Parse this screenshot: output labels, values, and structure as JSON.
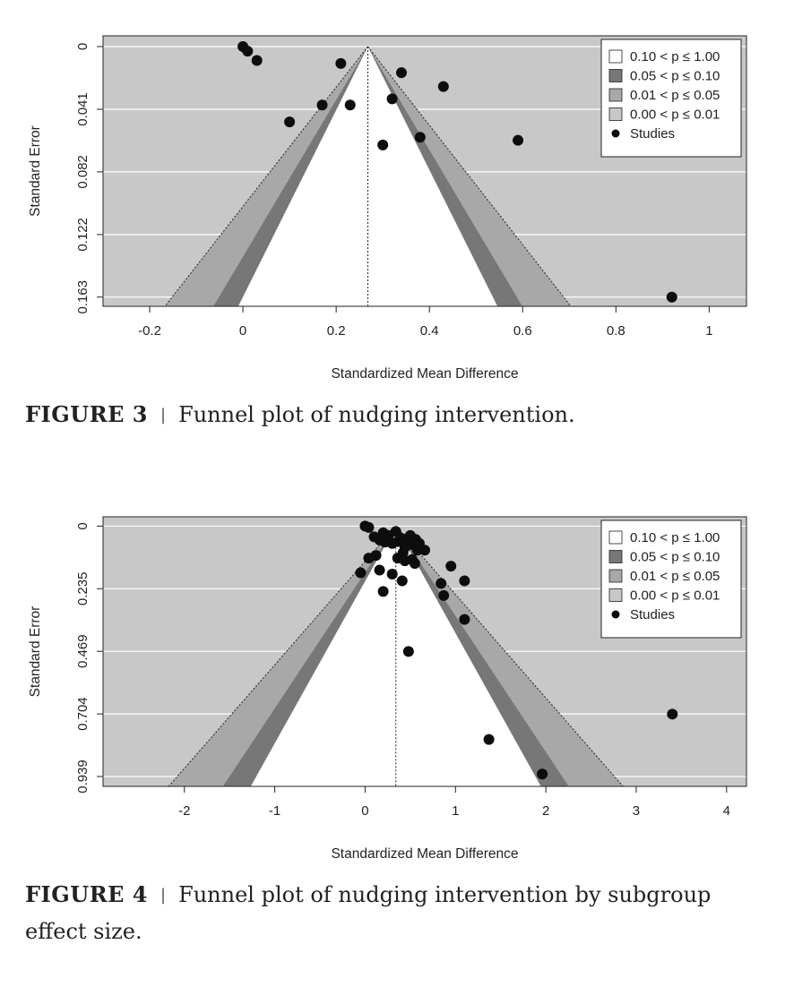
{
  "figures": [
    {
      "caption_label": "FIGURE 3",
      "caption_text": "Funnel plot of nudging intervention."
    },
    {
      "caption_label": "FIGURE 4",
      "caption_text": "Funnel plot of nudging intervention by subgroup effect size."
    }
  ],
  "chart_data": [
    {
      "type": "scatter",
      "subtype": "contour-enhanced funnel plot",
      "xlabel": "Standardized Mean Difference",
      "ylabel": "Standard Error",
      "xlim": [
        -0.3,
        1.08
      ],
      "ylim": [
        0.169,
        -0.007
      ],
      "y_inverted": true,
      "x_ticks": [
        -0.2,
        0,
        0.2,
        0.4,
        0.6,
        0.8,
        1
      ],
      "x_tick_labels": [
        "-0.2",
        "0",
        "0.2",
        "0.4",
        "0.6",
        "0.8",
        "1"
      ],
      "y_ticks": [
        0,
        0.0408,
        0.0815,
        0.1223,
        0.163
      ],
      "y_tick_labels": [
        "0",
        "0.041",
        "0.082",
        "0.122",
        "0.163"
      ],
      "grid": "horizontal",
      "legend_position": "top-right",
      "legend": [
        {
          "label": "0.10 < p ≤ 1.00",
          "color": "#ffffff"
        },
        {
          "label": "0.05 < p ≤ 0.10",
          "color": "#777777"
        },
        {
          "label": "0.01 < p ≤ 0.05",
          "color": "#a8a8a8"
        },
        {
          "label": "0.00 < p ≤ 0.01",
          "color": "#c8c8c8"
        },
        {
          "label": "Studies",
          "marker": "dot"
        }
      ],
      "colors": {
        "background": "#c8c8c8",
        "p001": "#a8a8a8",
        "p005": "#777777",
        "p010": "#ffffff"
      },
      "pooled_effect": 0.268,
      "funnel_z": {
        "p010": 1.645,
        "p005": 1.96,
        "p001": 2.576
      },
      "points": [
        {
          "x": 0.0,
          "y": 0.0
        },
        {
          "x": 0.01,
          "y": 0.003
        },
        {
          "x": 0.03,
          "y": 0.009
        },
        {
          "x": 0.21,
          "y": 0.011
        },
        {
          "x": 0.34,
          "y": 0.017
        },
        {
          "x": 0.43,
          "y": 0.026
        },
        {
          "x": 0.32,
          "y": 0.034
        },
        {
          "x": 0.17,
          "y": 0.038
        },
        {
          "x": 0.23,
          "y": 0.038
        },
        {
          "x": 0.1,
          "y": 0.049
        },
        {
          "x": 0.38,
          "y": 0.059
        },
        {
          "x": 0.59,
          "y": 0.061
        },
        {
          "x": 0.3,
          "y": 0.064
        },
        {
          "x": 0.92,
          "y": 0.163
        }
      ]
    },
    {
      "type": "scatter",
      "subtype": "contour-enhanced funnel plot",
      "xlabel": "Standardized Mean Difference",
      "ylabel": "Standard Error",
      "xlim": [
        -2.9,
        4.22
      ],
      "ylim": [
        0.976,
        -0.035
      ],
      "y_inverted": true,
      "x_ticks": [
        -2,
        -1,
        0,
        1,
        2,
        3,
        4
      ],
      "x_tick_labels": [
        "-2",
        "-1",
        "0",
        "1",
        "2",
        "3",
        "4"
      ],
      "y_ticks": [
        0,
        0.2348,
        0.4695,
        0.7043,
        0.939
      ],
      "y_tick_labels": [
        "0",
        "0.235",
        "0.469",
        "0.704",
        "0.939"
      ],
      "grid": "horizontal",
      "legend_position": "top-right",
      "legend": [
        {
          "label": "0.10 < p ≤ 1.00",
          "color": "#ffffff"
        },
        {
          "label": "0.05 < p ≤ 0.10",
          "color": "#777777"
        },
        {
          "label": "0.01 < p ≤ 0.05",
          "color": "#a8a8a8"
        },
        {
          "label": "0.00 < p ≤ 0.01",
          "color": "#c8c8c8"
        },
        {
          "label": "Studies",
          "marker": "dot"
        }
      ],
      "colors": {
        "background": "#c8c8c8",
        "p001": "#a8a8a8",
        "p005": "#777777",
        "p010": "#ffffff"
      },
      "pooled_effect": 0.34,
      "funnel_z": {
        "p010": 1.645,
        "p005": 1.96,
        "p001": 2.576
      },
      "points": [
        {
          "x": 0.0,
          "y": 0.0
        },
        {
          "x": 0.04,
          "y": 0.005
        },
        {
          "x": 0.1,
          "y": 0.04
        },
        {
          "x": 0.16,
          "y": 0.052
        },
        {
          "x": 0.2,
          "y": 0.025
        },
        {
          "x": 0.22,
          "y": 0.06
        },
        {
          "x": 0.26,
          "y": 0.035
        },
        {
          "x": 0.3,
          "y": 0.065
        },
        {
          "x": 0.34,
          "y": 0.02
        },
        {
          "x": 0.36,
          "y": 0.058
        },
        {
          "x": 0.4,
          "y": 0.045
        },
        {
          "x": 0.42,
          "y": 0.1
        },
        {
          "x": 0.44,
          "y": 0.08
        },
        {
          "x": 0.46,
          "y": 0.06
        },
        {
          "x": 0.5,
          "y": 0.035
        },
        {
          "x": 0.53,
          "y": 0.07
        },
        {
          "x": 0.56,
          "y": 0.05
        },
        {
          "x": 0.58,
          "y": 0.09
        },
        {
          "x": 0.6,
          "y": 0.065
        },
        {
          "x": 0.66,
          "y": 0.09
        },
        {
          "x": 0.44,
          "y": 0.13
        },
        {
          "x": 0.52,
          "y": 0.125
        },
        {
          "x": 0.55,
          "y": 0.14
        },
        {
          "x": 0.04,
          "y": 0.12
        },
        {
          "x": 0.12,
          "y": 0.11
        },
        {
          "x": 0.36,
          "y": 0.12
        },
        {
          "x": -0.05,
          "y": 0.175
        },
        {
          "x": 0.16,
          "y": 0.165
        },
        {
          "x": 0.3,
          "y": 0.18
        },
        {
          "x": 0.41,
          "y": 0.205
        },
        {
          "x": 0.2,
          "y": 0.245
        },
        {
          "x": 0.95,
          "y": 0.15
        },
        {
          "x": 1.1,
          "y": 0.205
        },
        {
          "x": 0.84,
          "y": 0.215
        },
        {
          "x": 0.87,
          "y": 0.26
        },
        {
          "x": 1.1,
          "y": 0.35
        },
        {
          "x": 0.48,
          "y": 0.47
        },
        {
          "x": 3.4,
          "y": 0.705
        },
        {
          "x": 1.37,
          "y": 0.8
        },
        {
          "x": 1.96,
          "y": 0.93
        }
      ]
    }
  ]
}
